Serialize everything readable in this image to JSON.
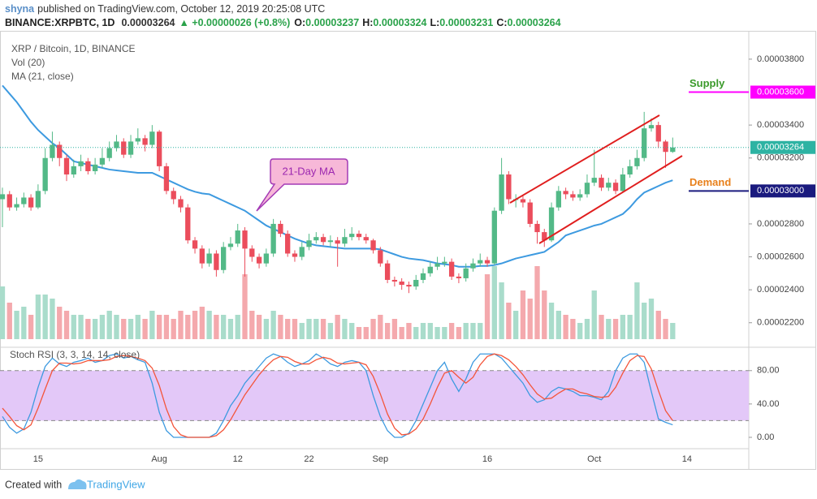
{
  "header": {
    "author": "shyna",
    "published": "published on TradingView.com, October 12, 2019 20:25:08 UTC",
    "symbol": "BINANCE:XRPBTC, 1D",
    "price": "0.00003264",
    "change": "▲ +0.00000026 (+0.8%)",
    "ohlc": [
      {
        "label": "O:",
        "value": "0.00003237"
      },
      {
        "label": "H:",
        "value": "0.00003324"
      },
      {
        "label": "L:",
        "value": "0.00003231"
      },
      {
        "label": "C:",
        "value": "0.00003264"
      }
    ]
  },
  "chart_data": {
    "type": "candlestick",
    "title": "XRP / Bitcoin, 1D, BINANCE",
    "up_color": "#53b987",
    "down_color": "#eb4d5c",
    "xlim": [
      -0.34,
      104.67
    ],
    "xticks": [
      {
        "value": 5,
        "label": "15"
      },
      {
        "value": 22,
        "label": "Aug"
      },
      {
        "value": 33,
        "label": "12"
      },
      {
        "value": 43,
        "label": "22"
      },
      {
        "value": 53,
        "label": "Sep"
      },
      {
        "value": 68,
        "label": "16"
      },
      {
        "value": 83,
        "label": "Oct"
      },
      {
        "value": 96,
        "label": "14"
      }
    ],
    "ylim": [
      2.051e-05,
      3.972e-05
    ],
    "yticks": [
      {
        "value": 2.2e-05,
        "label": "0.00002200"
      },
      {
        "value": 2.4e-05,
        "label": "0.00002400"
      },
      {
        "value": 2.6e-05,
        "label": "0.00002600"
      },
      {
        "value": 2.8e-05,
        "label": "0.00002800"
      },
      {
        "value": 3.2e-05,
        "label": "0.00003200"
      },
      {
        "value": 3.4e-05,
        "label": "0.00003400"
      },
      {
        "value": 3.8e-05,
        "label": "0.00003800"
      }
    ],
    "open": [
      2.95e-05,
      2.98e-05,
      2.9e-05,
      2.92e-05,
      2.96e-05,
      2.9e-05,
      3e-05,
      3.2e-05,
      3.28e-05,
      3.2e-05,
      3.1e-05,
      3.15e-05,
      3.18e-05,
      3.12e-05,
      3.16e-05,
      3.2e-05,
      3.26e-05,
      3.3e-05,
      3.22e-05,
      3.3e-05,
      3.32e-05,
      3.28e-05,
      3.36e-05,
      3.15e-05,
      3e-05,
      2.95e-05,
      2.9e-05,
      2.7e-05,
      2.65e-05,
      2.56e-05,
      2.62e-05,
      2.52e-05,
      2.66e-05,
      2.68e-05,
      2.76e-05,
      2.65e-05,
      2.6e-05,
      2.56e-05,
      2.62e-05,
      2.8e-05,
      2.74e-05,
      2.62e-05,
      2.6e-05,
      2.66e-05,
      2.7e-05,
      2.72e-05,
      2.69e-05,
      2.7e-05,
      2.68e-05,
      2.72e-05,
      2.74e-05,
      2.72e-05,
      2.7e-05,
      2.64e-05,
      2.56e-05,
      2.46e-05,
      2.45e-05,
      2.43e-05,
      2.42e-05,
      2.46e-05,
      2.5e-05,
      2.54e-05,
      2.56e-05,
      2.57e-05,
      2.48e-05,
      2.47e-05,
      2.53e-05,
      2.56e-05,
      2.58e-05,
      2.56e-05,
      2.88e-05,
      3.1e-05,
      2.95e-05,
      2.95e-05,
      2.93e-05,
      2.8e-05,
      2.75e-05,
      2.7e-05,
      2.9e-05,
      3e-05,
      2.98e-05,
      2.96e-05,
      2.98e-05,
      3.05e-05,
      3.08e-05,
      3.02e-05,
      3.05e-05,
      3e-05,
      3.1e-05,
      3.15e-05,
      3.2e-05,
      3.38e-05,
      3.4e-05,
      3.3e-05,
      3.237e-05
    ],
    "high": [
      3.02e-05,
      3e-05,
      2.96e-05,
      2.99e-05,
      2.98e-05,
      3.04e-05,
      3.26e-05,
      3.36e-05,
      3.3e-05,
      3.22e-05,
      3.19e-05,
      3.22e-05,
      3.2e-05,
      3.2e-05,
      3.26e-05,
      3.3e-05,
      3.34e-05,
      3.32e-05,
      3.34e-05,
      3.38e-05,
      3.34e-05,
      3.4e-05,
      3.37e-05,
      3.17e-05,
      3.02e-05,
      2.97e-05,
      2.92e-05,
      2.72e-05,
      2.67e-05,
      2.65e-05,
      2.64e-05,
      2.69e-05,
      2.72e-05,
      2.8e-05,
      2.78e-05,
      2.67e-05,
      2.62e-05,
      2.65e-05,
      2.83e-05,
      2.82e-05,
      2.76e-05,
      2.64e-05,
      2.69e-05,
      2.74e-05,
      2.75e-05,
      2.74e-05,
      2.73e-05,
      2.72e-05,
      2.77e-05,
      2.78e-05,
      2.76e-05,
      2.74e-05,
      2.71e-05,
      2.66e-05,
      2.58e-05,
      2.48e-05,
      2.47e-05,
      2.45e-05,
      2.49e-05,
      2.53e-05,
      2.57e-05,
      2.6e-05,
      2.6e-05,
      2.59e-05,
      2.5e-05,
      2.56e-05,
      2.59e-05,
      2.62e-05,
      2.6e-05,
      2.9e-05,
      3.2e-05,
      3.12e-05,
      2.98e-05,
      2.97e-05,
      2.95e-05,
      2.82e-05,
      2.77e-05,
      2.93e-05,
      3.03e-05,
      3.02e-05,
      3e-05,
      3.01e-05,
      3.1e-05,
      3.25e-05,
      3.1e-05,
      3.08e-05,
      3.07e-05,
      3.14e-05,
      3.19e-05,
      3.25e-05,
      3.48e-05,
      3.44e-05,
      3.42e-05,
      3.31e-05,
      3.324e-05
    ],
    "low": [
      2.78e-05,
      2.88e-05,
      2.88e-05,
      2.9e-05,
      2.88e-05,
      2.89e-05,
      2.98e-05,
      3.18e-05,
      3.15e-05,
      3.06e-05,
      3.08e-05,
      3.12e-05,
      3.1e-05,
      3.1e-05,
      3.14e-05,
      3.18e-05,
      3.24e-05,
      3.2e-05,
      3.2e-05,
      3.28e-05,
      3.24e-05,
      3.26e-05,
      3.12e-05,
      2.98e-05,
      2.92e-05,
      2.87e-05,
      2.68e-05,
      2.62e-05,
      2.53e-05,
      2.54e-05,
      2.48e-05,
      2.5e-05,
      2.64e-05,
      2.66e-05,
      2.48e-05,
      2.57e-05,
      2.53e-05,
      2.54e-05,
      2.6e-05,
      2.72e-05,
      2.6e-05,
      2.57e-05,
      2.58e-05,
      2.64e-05,
      2.68e-05,
      2.67e-05,
      2.66e-05,
      2.54e-05,
      2.66e-05,
      2.7e-05,
      2.7e-05,
      2.68e-05,
      2.62e-05,
      2.54e-05,
      2.44e-05,
      2.42e-05,
      2.4e-05,
      2.38e-05,
      2.4e-05,
      2.44e-05,
      2.48e-05,
      2.52e-05,
      2.54e-05,
      2.46e-05,
      2.44e-05,
      2.45e-05,
      2.51e-05,
      2.54e-05,
      2.54e-05,
      2.55e-05,
      2.86e-05,
      2.92e-05,
      2.9e-05,
      2.9e-05,
      2.78e-05,
      2.68e-05,
      2.66e-05,
      2.69e-05,
      2.88e-05,
      2.95e-05,
      2.94e-05,
      2.94e-05,
      2.96e-05,
      3.03e-05,
      3e-05,
      3e-05,
      2.98e-05,
      2.99e-05,
      3.08e-05,
      3.13e-05,
      3.18e-05,
      3.36e-05,
      3.26e-05,
      3.14e-05,
      3.231e-05
    ],
    "close": [
      2.98e-05,
      2.9e-05,
      2.92e-05,
      2.96e-05,
      2.9e-05,
      3e-05,
      3.2e-05,
      3.28e-05,
      3.2e-05,
      3.1e-05,
      3.15e-05,
      3.18e-05,
      3.12e-05,
      3.16e-05,
      3.2e-05,
      3.26e-05,
      3.3e-05,
      3.22e-05,
      3.3e-05,
      3.32e-05,
      3.28e-05,
      3.36e-05,
      3.15e-05,
      3e-05,
      2.95e-05,
      2.9e-05,
      2.7e-05,
      2.65e-05,
      2.56e-05,
      2.62e-05,
      2.52e-05,
      2.66e-05,
      2.68e-05,
      2.76e-05,
      2.65e-05,
      2.6e-05,
      2.56e-05,
      2.62e-05,
      2.8e-05,
      2.74e-05,
      2.62e-05,
      2.6e-05,
      2.66e-05,
      2.7e-05,
      2.72e-05,
      2.69e-05,
      2.7e-05,
      2.68e-05,
      2.72e-05,
      2.74e-05,
      2.72e-05,
      2.7e-05,
      2.64e-05,
      2.56e-05,
      2.46e-05,
      2.45e-05,
      2.43e-05,
      2.42e-05,
      2.46e-05,
      2.5e-05,
      2.54e-05,
      2.56e-05,
      2.57e-05,
      2.48e-05,
      2.47e-05,
      2.53e-05,
      2.56e-05,
      2.58e-05,
      2.56e-05,
      2.88e-05,
      3.1e-05,
      2.95e-05,
      2.95e-05,
      2.93e-05,
      2.8e-05,
      2.75e-05,
      2.7e-05,
      2.9e-05,
      3e-05,
      2.98e-05,
      2.96e-05,
      2.98e-05,
      3.05e-05,
      3.08e-05,
      3.02e-05,
      3.05e-05,
      3e-05,
      3.1e-05,
      3.15e-05,
      3.2e-05,
      3.38e-05,
      3.4e-05,
      3.3e-05,
      3.237e-05,
      3.264e-05
    ],
    "volume": {
      "name": "Vol (20)",
      "ylim": [
        0,
        100
      ],
      "up_color": "#a9dccb",
      "down_color": "#f4a9ad",
      "values": [
        65,
        45,
        35,
        40,
        30,
        55,
        55,
        50,
        40,
        35,
        30,
        30,
        25,
        25,
        30,
        35,
        30,
        25,
        25,
        30,
        25,
        35,
        30,
        30,
        25,
        35,
        30,
        35,
        40,
        35,
        30,
        30,
        25,
        30,
        80,
        35,
        30,
        25,
        35,
        30,
        25,
        25,
        20,
        25,
        25,
        25,
        20,
        30,
        25,
        20,
        15,
        15,
        25,
        30,
        20,
        25,
        15,
        20,
        15,
        20,
        20,
        15,
        15,
        20,
        15,
        20,
        20,
        20,
        80,
        90,
        70,
        45,
        35,
        60,
        50,
        90,
        60,
        45,
        35,
        30,
        25,
        20,
        25,
        60,
        30,
        25,
        25,
        30,
        30,
        70,
        45,
        50,
        35,
        25,
        20
      ]
    },
    "series": [
      {
        "name": "MA (21, close)",
        "color": "#3d9ae0",
        "values": [
          3.64e-05,
          3.59e-05,
          3.54e-05,
          3.48e-05,
          3.42e-05,
          3.37e-05,
          3.33e-05,
          3.29e-05,
          3.26e-05,
          3.22e-05,
          3.18e-05,
          3.17e-05,
          3.16e-05,
          3.15e-05,
          3.14e-05,
          3.13e-05,
          3.125e-05,
          3.12e-05,
          3.115e-05,
          3.11e-05,
          3.11e-05,
          3.11e-05,
          3.09e-05,
          3.07e-05,
          3.05e-05,
          3.03e-05,
          3.01e-05,
          2.995e-05,
          2.985e-05,
          2.98e-05,
          2.96e-05,
          2.94e-05,
          2.92e-05,
          2.9e-05,
          2.88e-05,
          2.85e-05,
          2.82e-05,
          2.79e-05,
          2.77e-05,
          2.75e-05,
          2.73e-05,
          2.71e-05,
          2.695e-05,
          2.68e-05,
          2.67e-05,
          2.665e-05,
          2.66e-05,
          2.655e-05,
          2.65e-05,
          2.65e-05,
          2.65e-05,
          2.65e-05,
          2.65e-05,
          2.645e-05,
          2.63e-05,
          2.615e-05,
          2.6e-05,
          2.59e-05,
          2.585e-05,
          2.58e-05,
          2.57e-05,
          2.56e-05,
          2.555e-05,
          2.55e-05,
          2.54e-05,
          2.54e-05,
          2.54e-05,
          2.545e-05,
          2.545e-05,
          2.55e-05,
          2.56e-05,
          2.575e-05,
          2.59e-05,
          2.6e-05,
          2.61e-05,
          2.62e-05,
          2.63e-05,
          2.66e-05,
          2.69e-05,
          2.73e-05,
          2.745e-05,
          2.76e-05,
          2.775e-05,
          2.79e-05,
          2.8e-05,
          2.82e-05,
          2.84e-05,
          2.86e-05,
          2.9e-05,
          2.95e-05,
          2.99e-05,
          3.01e-05,
          3.03e-05,
          3.05e-05,
          3.065e-05
        ]
      }
    ],
    "last": {
      "value": 3.264e-05,
      "label": "0.00003264",
      "color": "#2db3a3"
    },
    "levels": [
      {
        "text": "Supply",
        "text_color": "#3a9a2a",
        "value": 3.6e-05,
        "label": "0.00003600",
        "color": "#ff00ff"
      },
      {
        "text": "Demand",
        "text_color": "#e8801c",
        "value": 3e-05,
        "label": "0.00003000",
        "color": "#1a1a7e"
      }
    ],
    "callout": "21-Day MA",
    "stoch": {
      "name": "Stoch RSI (3, 3, 14, 14, close)",
      "ylim": [
        -18.5,
        108
      ],
      "band": [
        20,
        80
      ],
      "band_color": "#e3c8f8",
      "yticks": [
        {
          "value": 0,
          "label": "0.00"
        },
        {
          "value": 40,
          "label": "40.00"
        },
        {
          "value": 80,
          "label": "80.00"
        }
      ],
      "series": [
        {
          "color": "#3d9ae0",
          "values": [
            25,
            12,
            5,
            10,
            30,
            60,
            85,
            95,
            88,
            85,
            90,
            92,
            95,
            90,
            92,
            98,
            100,
            95,
            97,
            93,
            90,
            65,
            30,
            8,
            0,
            0,
            0,
            0,
            0,
            0,
            5,
            20,
            38,
            50,
            65,
            75,
            85,
            95,
            100,
            97,
            90,
            85,
            88,
            92,
            100,
            95,
            88,
            85,
            90,
            92,
            90,
            80,
            50,
            25,
            8,
            0,
            0,
            5,
            20,
            40,
            60,
            80,
            90,
            70,
            55,
            70,
            90,
            100,
            100,
            100,
            95,
            85,
            75,
            65,
            50,
            42,
            45,
            55,
            60,
            58,
            55,
            50,
            50,
            48,
            45,
            55,
            80,
            95,
            100,
            100,
            90,
            55,
            22,
            18,
            15
          ]
        },
        {
          "color": "#f4553a",
          "values": [
            35,
            25,
            14,
            9,
            15,
            35,
            58,
            80,
            89,
            89,
            88,
            89,
            92,
            92,
            92,
            93,
            97,
            98,
            97,
            95,
            92,
            83,
            62,
            34,
            13,
            3,
            0,
            0,
            0,
            0,
            2,
            9,
            21,
            36,
            51,
            63,
            75,
            85,
            93,
            97,
            96,
            91,
            88,
            88,
            93,
            96,
            94,
            89,
            88,
            89,
            90,
            87,
            73,
            52,
            28,
            11,
            3,
            4,
            10,
            22,
            40,
            60,
            77,
            80,
            72,
            65,
            72,
            87,
            97,
            100,
            98,
            93,
            85,
            75,
            63,
            52,
            46,
            47,
            53,
            58,
            58,
            54,
            52,
            49,
            48,
            49,
            60,
            77,
            92,
            98,
            97,
            82,
            56,
            32,
            20
          ]
        }
      ]
    }
  },
  "footer": {
    "created": "Created with",
    "brand": "TradingView"
  }
}
